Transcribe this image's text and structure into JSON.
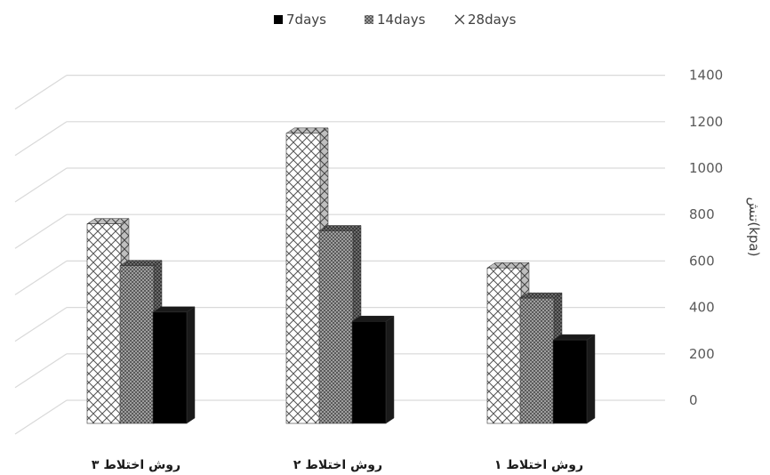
{
  "chart_data": {
    "type": "bar",
    "categories": [
      "روش اختلاط ۳",
      "روش اختلاط ۲",
      "روش اختلاط ۱"
    ],
    "series": [
      {
        "name": "28days",
        "values": [
          760,
          1150,
          570
        ],
        "pattern": "crosshatch"
      },
      {
        "name": "14days",
        "values": [
          580,
          730,
          440
        ],
        "pattern": "dots"
      },
      {
        "name": "7days",
        "values": [
          380,
          340,
          260
        ],
        "pattern": "solid"
      }
    ],
    "legend": [
      "7days",
      "14days",
      "28days"
    ],
    "ylabel": "تنش(kpa)",
    "ylim": [
      0,
      1400
    ],
    "yticks": [
      "0",
      "200",
      "400",
      "600",
      "800",
      "1000",
      "1200",
      "1400"
    ],
    "ytick_values": [
      0,
      200,
      400,
      600,
      800,
      1000,
      1200,
      1400
    ],
    "grid": true,
    "legend_position": "top",
    "colors": {
      "solid": "#000000",
      "grid": "#d9d9d9",
      "text": "#595959"
    }
  }
}
